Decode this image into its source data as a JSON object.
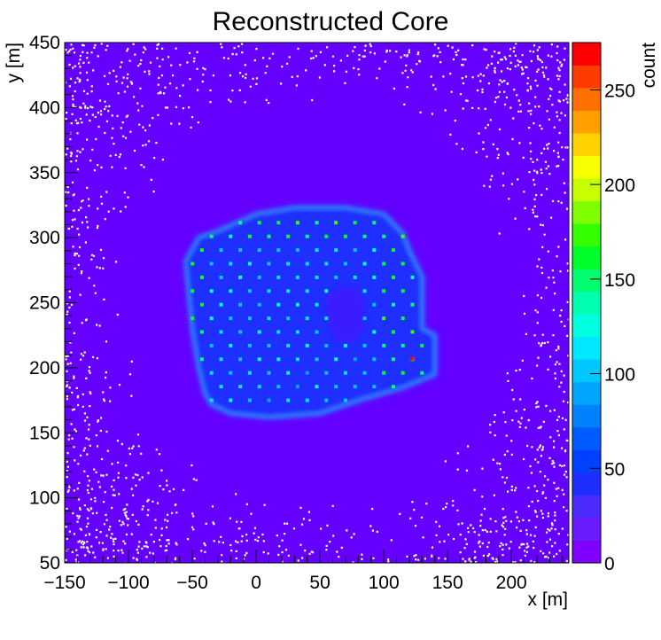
{
  "chart_data": {
    "type": "heatmap",
    "title": "Reconstructed Core",
    "xlabel": "x [m]",
    "ylabel": "y [m]",
    "zlabel": "count",
    "xlim": [
      -150,
      245
    ],
    "ylim": [
      50,
      450
    ],
    "zlim": [
      0,
      275
    ],
    "xticks": [
      -150,
      -100,
      -50,
      0,
      50,
      100,
      150,
      200
    ],
    "yticks": [
      50,
      100,
      150,
      200,
      250,
      300,
      350,
      400,
      450
    ],
    "zticks": [
      0,
      50,
      100,
      150,
      200,
      250
    ],
    "colorbar_colors": [
      "#8000ff",
      "#6a1cff",
      "#4b2bff",
      "#1e2eff",
      "#0040ff",
      "#005bff",
      "#0082ff",
      "#00a6ff",
      "#00c8ff",
      "#00e8ff",
      "#00ffe0",
      "#00ffb0",
      "#00ff70",
      "#00ff2a",
      "#35ff00",
      "#80ff00",
      "#c8ff00",
      "#f7ff00",
      "#ffd200",
      "#ffa000",
      "#ff7000",
      "#ff3c00",
      "#ff0000"
    ],
    "background_level_color": "#6500ff",
    "regions": [
      {
        "name": "detector-array",
        "polygon": [
          [
            -55,
            282
          ],
          [
            -45,
            300
          ],
          [
            -30,
            305
          ],
          [
            0,
            318
          ],
          [
            30,
            323
          ],
          [
            70,
            323
          ],
          [
            100,
            318
          ],
          [
            115,
            303
          ],
          [
            120,
            290
          ],
          [
            130,
            270
          ],
          [
            130,
            230
          ],
          [
            140,
            225
          ],
          [
            140,
            195
          ],
          [
            115,
            185
          ],
          [
            80,
            175
          ],
          [
            50,
            165
          ],
          [
            10,
            162
          ],
          [
            -20,
            165
          ],
          [
            -35,
            172
          ],
          [
            -40,
            180
          ],
          [
            -45,
            200
          ],
          [
            -50,
            230
          ],
          [
            -53,
            260
          ]
        ],
        "level": 45
      },
      {
        "name": "hole",
        "polygon": [
          [
            55,
            255
          ],
          [
            65,
            263
          ],
          [
            78,
            262
          ],
          [
            85,
            250
          ],
          [
            85,
            232
          ],
          [
            78,
            220
          ],
          [
            62,
            220
          ],
          [
            56,
            235
          ]
        ],
        "level": 8
      }
    ],
    "peak": {
      "x": 122,
      "y": 207,
      "level": 265
    }
  }
}
